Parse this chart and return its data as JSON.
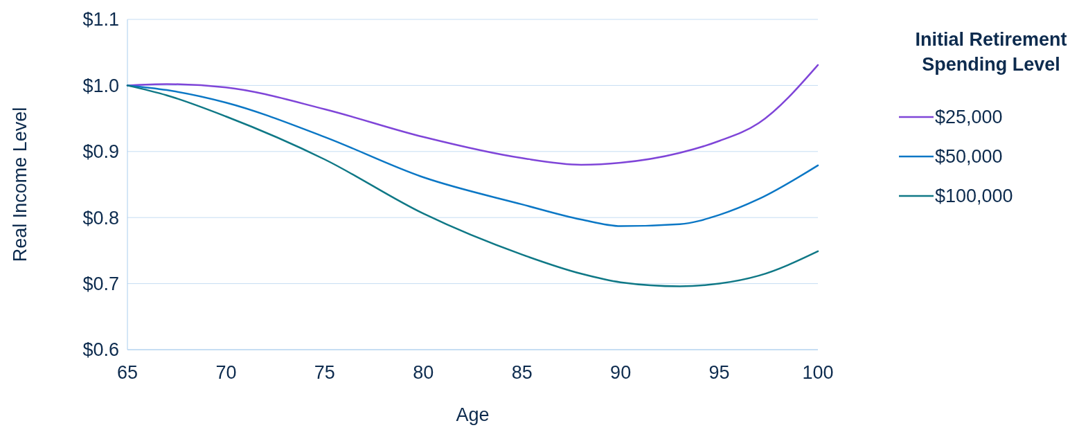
{
  "chart_data": {
    "type": "line",
    "xlabel": "Age",
    "ylabel": "Real Income Level",
    "legend_title": "Initial Retirement Spending Level",
    "legend": "right",
    "grid": "y",
    "line_style": "solid",
    "marker": "none",
    "x": [
      65,
      67,
      70,
      75,
      80,
      85,
      88,
      90,
      93,
      95,
      97,
      100
    ],
    "xlim": [
      65,
      100
    ],
    "xticks": [
      65,
      70,
      75,
      80,
      85,
      90,
      95,
      100
    ],
    "ylim": [
      0.6,
      1.1
    ],
    "yticks": [
      {
        "value": 0.6,
        "label": "$0.6"
      },
      {
        "value": 0.7,
        "label": "$0.7"
      },
      {
        "value": 0.8,
        "label": "$0.8"
      },
      {
        "value": 0.9,
        "label": "$0.9"
      },
      {
        "value": 1.0,
        "label": "$1.0"
      },
      {
        "value": 1.1,
        "label": "$1.1"
      }
    ],
    "series": [
      {
        "name": "$25,000",
        "color": "#7f45d8",
        "values": [
          1.0,
          1.002,
          0.997,
          0.964,
          0.922,
          0.89,
          0.88,
          0.883,
          0.898,
          0.916,
          0.943,
          1.031
        ]
      },
      {
        "name": "$50,000",
        "color": "#0b77c5",
        "values": [
          1.0,
          0.993,
          0.974,
          0.922,
          0.861,
          0.82,
          0.797,
          0.787,
          0.79,
          0.804,
          0.828,
          0.879
        ]
      },
      {
        "name": "$100,000",
        "color": "#0f7886",
        "values": [
          1.0,
          0.985,
          0.953,
          0.888,
          0.806,
          0.744,
          0.715,
          0.702,
          0.696,
          0.7,
          0.712,
          0.749
        ]
      }
    ]
  }
}
